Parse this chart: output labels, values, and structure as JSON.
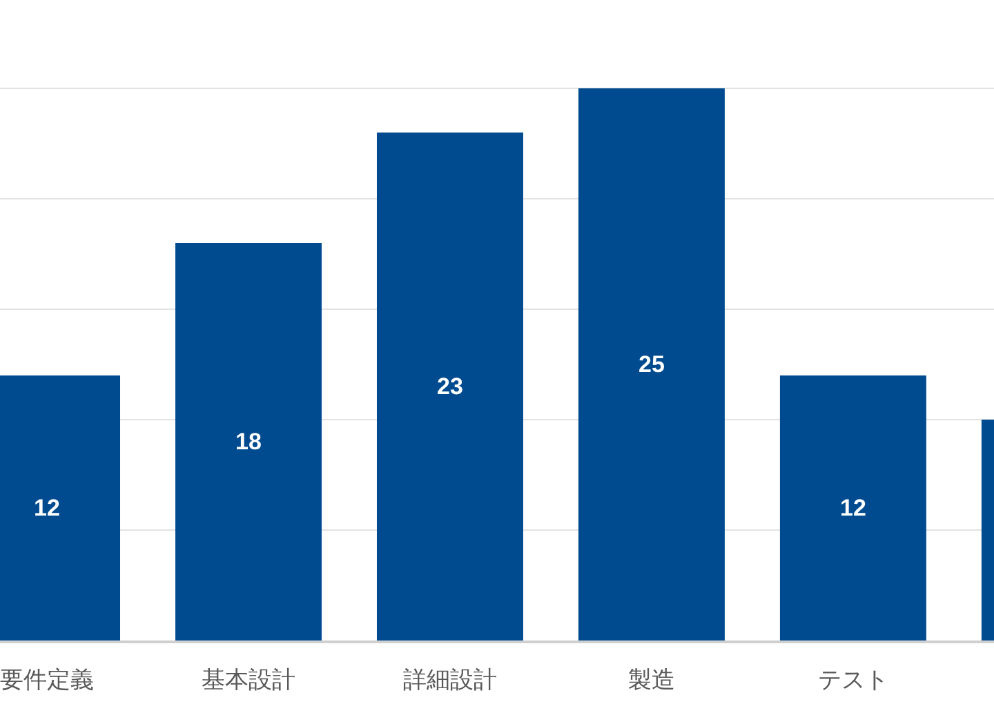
{
  "chart_data": {
    "type": "bar",
    "categories": [
      "要件定義",
      "基本設計",
      "詳細設計",
      "製造",
      "テスト",
      null
    ],
    "values": [
      12,
      18,
      23,
      25,
      12,
      10
    ],
    "color": "#004b8f",
    "value_labels": [
      "12",
      "18",
      "23",
      "25",
      "12",
      null
    ],
    "ylim": [
      0,
      29
    ],
    "yticks": [
      {
        "value": 5,
        "label": null
      },
      {
        "value": 10,
        "label": null
      },
      {
        "value": 15,
        "label": null
      },
      {
        "value": 20,
        "label": null
      },
      {
        "value": 25,
        "label": null
      }
    ],
    "grid": "y",
    "tick_labels": "x"
  }
}
